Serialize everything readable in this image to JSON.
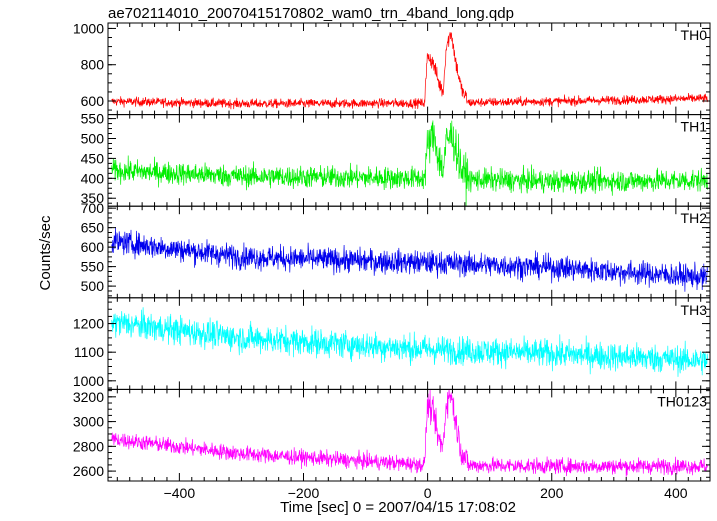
{
  "title": "ae702114010_20070415170802_wam0_trn_4band_long.qdp",
  "ylabel": "Counts/sec",
  "xlabel": "Time [sec] 0 = 2007/04/15 17:08:02",
  "chart_data": {
    "type": "line",
    "x_range": [
      -515,
      455
    ],
    "x_ticks": [
      -400,
      -200,
      0,
      200,
      400
    ],
    "x_tick_labels": [
      "−400",
      "−200",
      "0",
      "200",
      "400"
    ],
    "panels": [
      {
        "name": "TH0",
        "color": "#ff0000",
        "ylim": [
          525,
          1030
        ],
        "yticks": [
          600,
          800,
          1000
        ],
        "baseline": [
          [
            -510,
            598
          ],
          [
            -300,
            585
          ],
          [
            0,
            588
          ],
          [
            200,
            598
          ],
          [
            450,
            615
          ]
        ],
        "noise": 18,
        "burst": [
          [
            -5,
            590
          ],
          [
            0,
            860
          ],
          [
            10,
            800
          ],
          [
            18,
            700
          ],
          [
            25,
            650
          ],
          [
            30,
            900
          ],
          [
            38,
            980
          ],
          [
            45,
            820
          ],
          [
            55,
            660
          ],
          [
            65,
            600
          ]
        ]
      },
      {
        "name": "TH1",
        "color": "#00ee00",
        "ylim": [
          330,
          560
        ],
        "yticks": [
          350,
          400,
          450,
          500,
          550
        ],
        "baseline": [
          [
            -510,
            420
          ],
          [
            -300,
            405
          ],
          [
            0,
            400
          ],
          [
            200,
            392
          ],
          [
            450,
            395
          ]
        ],
        "noise": 20,
        "burst": [
          [
            -5,
            405
          ],
          [
            0,
            480
          ],
          [
            10,
            510
          ],
          [
            18,
            450
          ],
          [
            25,
            420
          ],
          [
            30,
            490
          ],
          [
            38,
            510
          ],
          [
            45,
            480
          ],
          [
            55,
            420
          ],
          [
            65,
            400
          ]
        ]
      },
      {
        "name": "TH2",
        "color": "#0000ee",
        "ylim": [
          470,
          705
        ],
        "yticks": [
          500,
          550,
          600,
          650,
          700
        ],
        "baseline": [
          [
            -510,
            615
          ],
          [
            -300,
            575
          ],
          [
            0,
            560
          ],
          [
            200,
            548
          ],
          [
            450,
            522
          ]
        ],
        "noise": 22,
        "burst": []
      },
      {
        "name": "TH3",
        "color": "#00ffff",
        "ylim": [
          970,
          1290
        ],
        "yticks": [
          1000,
          1100,
          1200
        ],
        "baseline": [
          [
            -510,
            1205
          ],
          [
            -300,
            1150
          ],
          [
            0,
            1110
          ],
          [
            200,
            1095
          ],
          [
            450,
            1070
          ]
        ],
        "noise": 35,
        "burst": []
      },
      {
        "name": "TH0123",
        "color": "#ff00ff",
        "ylim": [
          2520,
          3260
        ],
        "yticks": [
          2600,
          2800,
          3000,
          3200
        ],
        "baseline": [
          [
            -510,
            2860
          ],
          [
            -300,
            2740
          ],
          [
            0,
            2650
          ],
          [
            200,
            2640
          ],
          [
            450,
            2640
          ]
        ],
        "noise": 45,
        "burst": [
          [
            -5,
            2680
          ],
          [
            0,
            3150
          ],
          [
            10,
            3050
          ],
          [
            18,
            2850
          ],
          [
            25,
            2800
          ],
          [
            30,
            3150
          ],
          [
            38,
            3230
          ],
          [
            45,
            3000
          ],
          [
            55,
            2750
          ],
          [
            65,
            2660
          ]
        ]
      }
    ]
  }
}
